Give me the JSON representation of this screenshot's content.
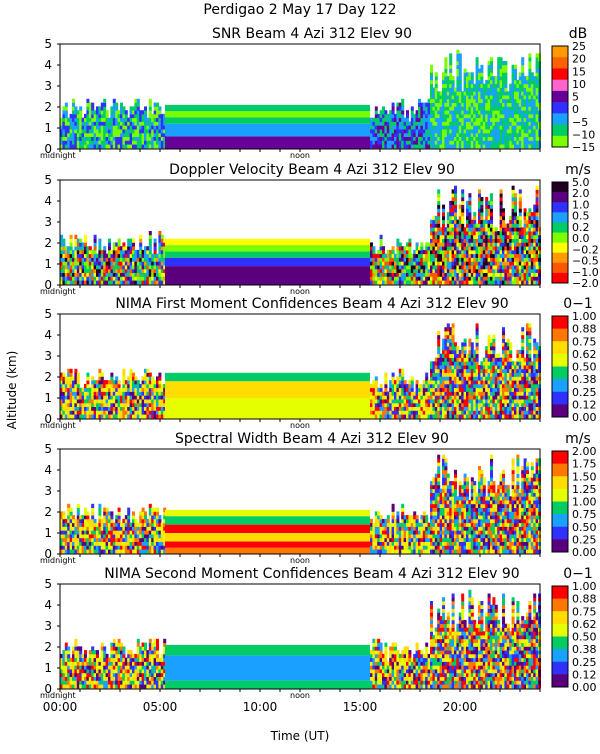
{
  "figure": {
    "title_line1": "Perdigao    2 May 17 Day 122",
    "ylabel": "Altitude (km)",
    "xlabel": "Time (UT)",
    "x_ticks": [
      "00:00",
      "05:00",
      "10:00",
      "15:00",
      "20:00"
    ],
    "marker_left": "midnight",
    "marker_mid": "noon"
  },
  "chart_data": [
    {
      "type": "heatmap",
      "title": "SNR Beam 4 Azi 312 Elev 90",
      "unit": "dB",
      "ylim": [
        0,
        5
      ],
      "y_ticks": [
        "0",
        "1",
        "2",
        "3",
        "4",
        "5"
      ],
      "colorbar_labels": [
        "25",
        "20",
        "15",
        "10",
        "5",
        "0",
        "−5",
        "−10",
        "−15"
      ],
      "colors": [
        "#ff9900",
        "#ff6000",
        "#ff0000",
        "#ff66cc",
        "#660099",
        "#3030ff",
        "#1aa0ff",
        "#00cc66",
        "#7cfc00"
      ]
    },
    {
      "type": "heatmap",
      "title": "Doppler Velocity Beam 4 Azi 312 Elev 90",
      "unit": "m/s",
      "ylim": [
        0,
        5
      ],
      "y_ticks": [
        "0",
        "1",
        "2",
        "3",
        "4",
        "5"
      ],
      "colorbar_labels": [
        "5.0",
        "2.0",
        "1.0",
        "0.5",
        "0.2",
        "0.0",
        "−0.2",
        "−0.5",
        "−1.0",
        "−2.0"
      ],
      "colors": [
        "#220022",
        "#5a007f",
        "#3030ff",
        "#1aa0ff",
        "#00cc66",
        "#7cfc00",
        "#ffff00",
        "#ff9900",
        "#ff5500",
        "#ff0000"
      ]
    },
    {
      "type": "heatmap",
      "title": "NIMA First Moment Confidences Beam 4 Azi 312 Elev 90",
      "unit": "0−1",
      "ylim": [
        0,
        5
      ],
      "y_ticks": [
        "0",
        "1",
        "2",
        "3",
        "4",
        "5"
      ],
      "colorbar_labels": [
        "1.00",
        "0.88",
        "0.75",
        "0.62",
        "0.50",
        "0.38",
        "0.25",
        "0.12",
        "0.00"
      ],
      "colors": [
        "#ff0000",
        "#ff7700",
        "#ffdd00",
        "#e6ff00",
        "#00cc66",
        "#1aa0ff",
        "#3030ff",
        "#5a007f"
      ]
    },
    {
      "type": "heatmap",
      "title": "Spectral Width Beam 4 Azi 312 Elev 90",
      "unit": "m/s",
      "ylim": [
        0,
        5
      ],
      "y_ticks": [
        "0",
        "1",
        "2",
        "3",
        "4",
        "5"
      ],
      "colorbar_labels": [
        "2.00",
        "1.75",
        "1.50",
        "1.25",
        "1.00",
        "0.75",
        "0.50",
        "0.25",
        "0.00"
      ],
      "colors": [
        "#ff0000",
        "#ff7700",
        "#ffdd00",
        "#e6ff00",
        "#00cc66",
        "#1aa0ff",
        "#3030ff",
        "#5a007f"
      ]
    },
    {
      "type": "heatmap",
      "title": "NIMA Second Moment Confidences Beam 4 Azi 312 Elev 90",
      "unit": "0−1",
      "ylim": [
        0,
        5
      ],
      "y_ticks": [
        "0",
        "1",
        "2",
        "3",
        "4",
        "5"
      ],
      "colorbar_labels": [
        "1.00",
        "0.88",
        "0.75",
        "0.62",
        "0.50",
        "0.38",
        "0.25",
        "0.12",
        "0.00"
      ],
      "colors": [
        "#ff0000",
        "#ff7700",
        "#ffdd00",
        "#e6ff00",
        "#00cc66",
        "#1aa0ff",
        "#3030ff",
        "#5a007f"
      ]
    }
  ]
}
